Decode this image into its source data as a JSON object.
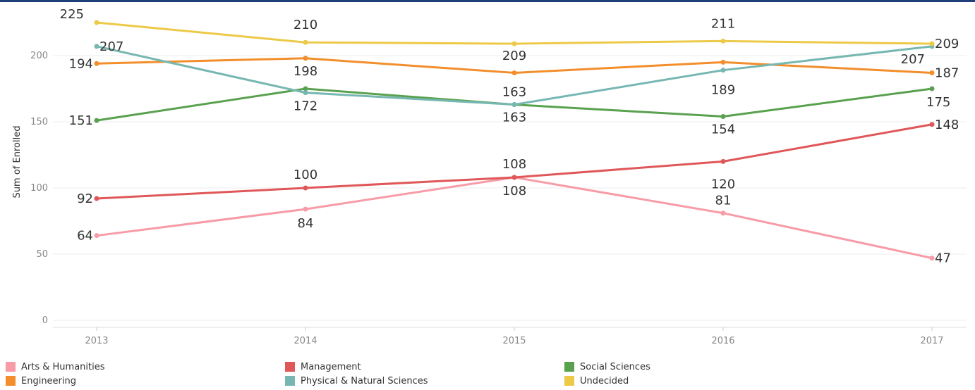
{
  "chart_data": {
    "type": "line",
    "title": "",
    "xlabel": "",
    "ylabel": "Sum of Enrolled",
    "x": [
      "2013",
      "2014",
      "2015",
      "2016",
      "2017"
    ],
    "yticks": [
      0,
      50,
      100,
      150,
      200
    ],
    "ylim": [
      0,
      235
    ],
    "grid": true,
    "legend_position": "bottom",
    "series": [
      {
        "name": "Arts & Humanities",
        "color": "#f79ba7",
        "values": [
          64,
          84,
          108,
          81,
          47
        ]
      },
      {
        "name": "Management",
        "color": "#e05759",
        "values": [
          92,
          100,
          108,
          120,
          148
        ]
      },
      {
        "name": "Social Sciences",
        "color": "#59a14f",
        "values": [
          151,
          175,
          163,
          154,
          175
        ]
      },
      {
        "name": "Engineering",
        "color": "#f28e2b",
        "values": [
          194,
          198,
          187,
          195,
          187
        ]
      },
      {
        "name": "Physical & Natural Sciences",
        "color": "#76b7b2",
        "values": [
          207,
          172,
          163,
          189,
          207
        ]
      },
      {
        "name": "Undecided",
        "color": "#edc948",
        "values": [
          225,
          210,
          209,
          211,
          209
        ]
      }
    ],
    "data_labels": [
      {
        "text": "225",
        "series": 5,
        "point": 0
      },
      {
        "text": "210",
        "series": 5,
        "point": 1
      },
      {
        "text": "209",
        "series": 5,
        "point": 2
      },
      {
        "text": "211",
        "series": 5,
        "point": 3
      },
      {
        "text": "209",
        "series": 5,
        "point": 4
      },
      {
        "text": "207",
        "series": 4,
        "point": 0
      },
      {
        "text": "172",
        "series": 4,
        "point": 1
      },
      {
        "text": "163",
        "series": 4,
        "point": 2
      },
      {
        "text": "189",
        "series": 4,
        "point": 3
      },
      {
        "text": "207",
        "series": 4,
        "point": 4
      },
      {
        "text": "194",
        "series": 3,
        "point": 0
      },
      {
        "text": "198",
        "series": 3,
        "point": 1
      },
      {
        "text": "187",
        "series": 3,
        "point": 4
      },
      {
        "text": "151",
        "series": 2,
        "point": 0
      },
      {
        "text": "163",
        "series": 2,
        "point": 2
      },
      {
        "text": "154",
        "series": 2,
        "point": 3
      },
      {
        "text": "175",
        "series": 2,
        "point": 4
      },
      {
        "text": "92",
        "series": 1,
        "point": 0
      },
      {
        "text": "100",
        "series": 1,
        "point": 1
      },
      {
        "text": "108",
        "series": 1,
        "point": 2
      },
      {
        "text": "120",
        "series": 1,
        "point": 3
      },
      {
        "text": "148",
        "series": 1,
        "point": 4
      },
      {
        "text": "64",
        "series": 0,
        "point": 0
      },
      {
        "text": "84",
        "series": 0,
        "point": 1
      },
      {
        "text": "108",
        "series": 0,
        "point": 2
      },
      {
        "text": "81",
        "series": 0,
        "point": 3
      },
      {
        "text": "47",
        "series": 0,
        "point": 4
      }
    ]
  }
}
